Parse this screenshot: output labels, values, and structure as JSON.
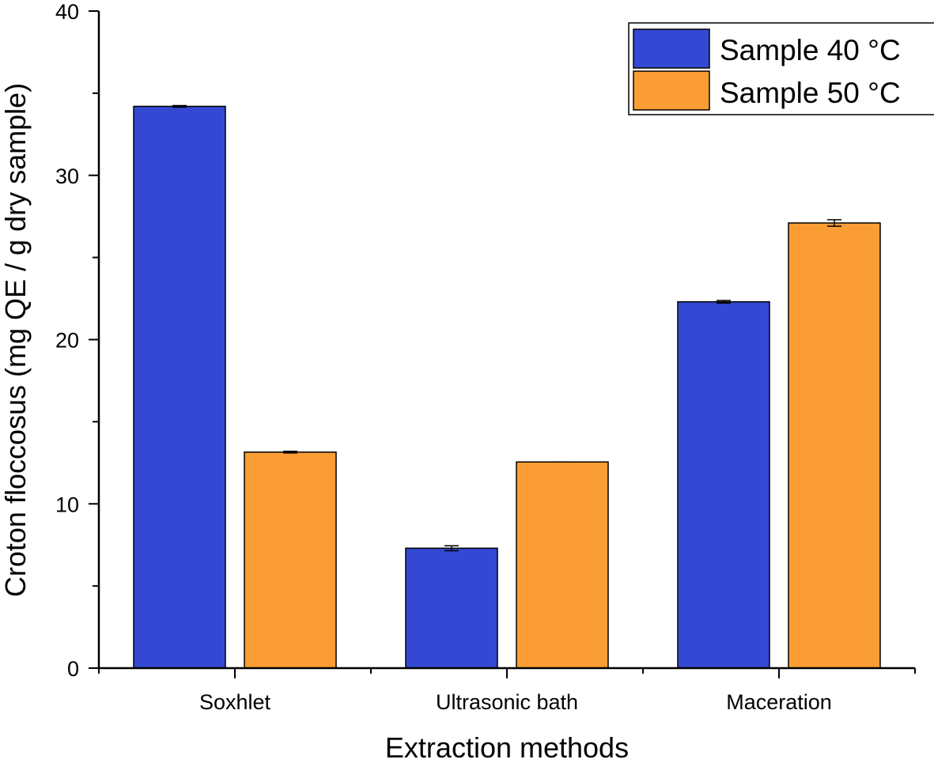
{
  "chart_data": {
    "type": "bar",
    "title": "",
    "xlabel": "Extraction methods",
    "ylabel": "Croton floccosus (mg QE / g dry sample)",
    "ylim": [
      0,
      40
    ],
    "yticks": [
      0,
      10,
      20,
      30,
      40
    ],
    "categories": [
      "Soxhlet",
      "Ultrasonic bath",
      "Maceration"
    ],
    "series": [
      {
        "name": "Sample 40 °C",
        "color": "#3449d3",
        "values": [
          34.2,
          7.3,
          22.3
        ],
        "errors": [
          0.05,
          0.15,
          0.08
        ]
      },
      {
        "name": "Sample 50 °C",
        "color": "#fb9d35",
        "values": [
          13.15,
          12.55,
          27.1
        ],
        "errors": [
          0.05,
          0.0,
          0.2
        ]
      }
    ],
    "legend_position": "top-right",
    "grid": false
  }
}
